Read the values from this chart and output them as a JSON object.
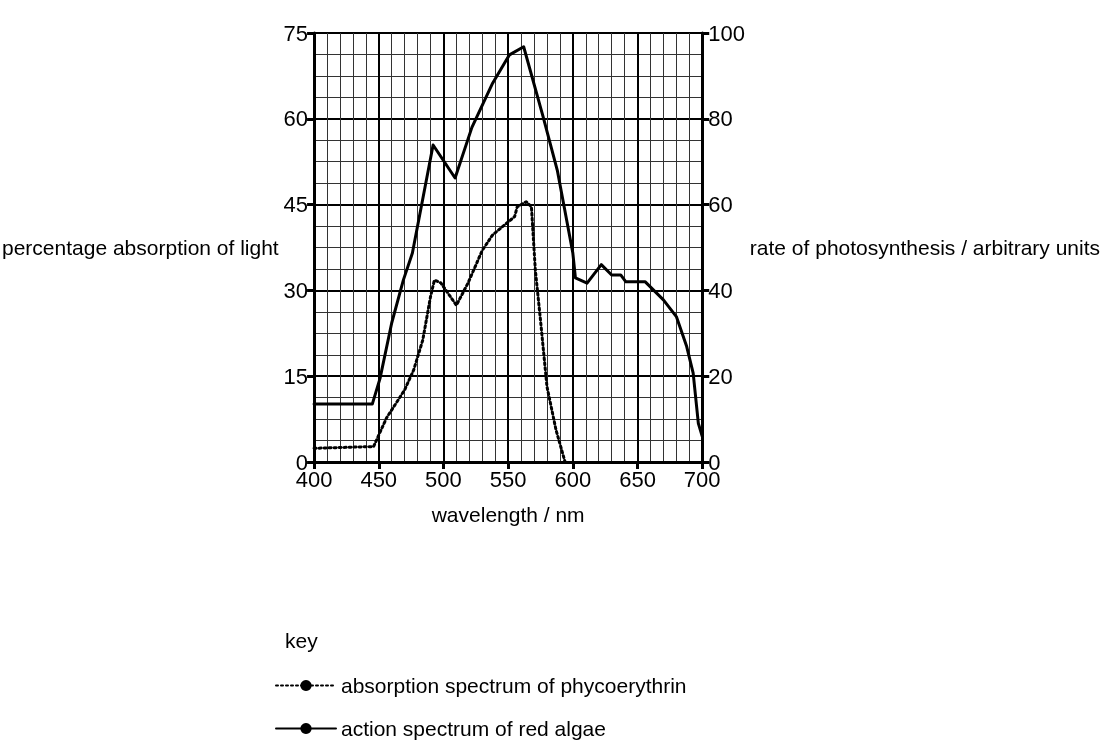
{
  "chart_data": {
    "type": "line",
    "xlabel": "wavelength / nm",
    "ylabel": "percentage absorption of light",
    "y2label": "rate of photosynthesis / arbitrary units",
    "legend_title": "key",
    "xlim": [
      400,
      700
    ],
    "xticks": [
      400,
      450,
      500,
      550,
      600,
      650,
      700
    ],
    "ylim": [
      0,
      75
    ],
    "yticks": [
      0,
      15,
      30,
      45,
      60,
      75
    ],
    "y2lim": [
      0,
      100
    ],
    "y2ticks": [
      0,
      20,
      40,
      60,
      80,
      100
    ],
    "grid": true,
    "legend": "bottom",
    "marker": "none",
    "series": [
      {
        "name": "absorption spectrum of phycoerythrin",
        "color": "#000000",
        "line_style": "dotted",
        "x": [
          400,
          446,
          456,
          470,
          477,
          484,
          490,
          493,
          498,
          510,
          519,
          530,
          538,
          555,
          557,
          564,
          568,
          571,
          575,
          580,
          587,
          594
        ],
        "values": [
          2.4,
          2.7,
          7.7,
          12.6,
          16.1,
          21.3,
          28.9,
          31.8,
          31.3,
          27.4,
          31.3,
          37,
          39.7,
          42.9,
          44.6,
          45.5,
          44.6,
          33.6,
          24.8,
          13.2,
          5.6,
          0
        ]
      },
      {
        "name": "action spectrum of red algae",
        "color": "#000000",
        "line_style": "solid",
        "axis": "y2",
        "x": [
          400,
          445,
          451,
          460,
          469,
          476,
          492,
          509,
          522,
          538,
          551,
          562,
          577,
          588,
          600,
          602,
          611,
          622,
          630,
          637,
          641,
          656,
          670,
          680,
          688,
          693,
          697,
          700
        ],
        "values": [
          13.5,
          13.5,
          19.5,
          32.4,
          42.4,
          48.7,
          73.9,
          66.2,
          78,
          88.3,
          94.9,
          96.8,
          80.5,
          68,
          48.7,
          42.9,
          41.7,
          46,
          43.6,
          43.6,
          42,
          42,
          37.8,
          33.9,
          26.9,
          20.7,
          9,
          6
        ]
      }
    ]
  }
}
